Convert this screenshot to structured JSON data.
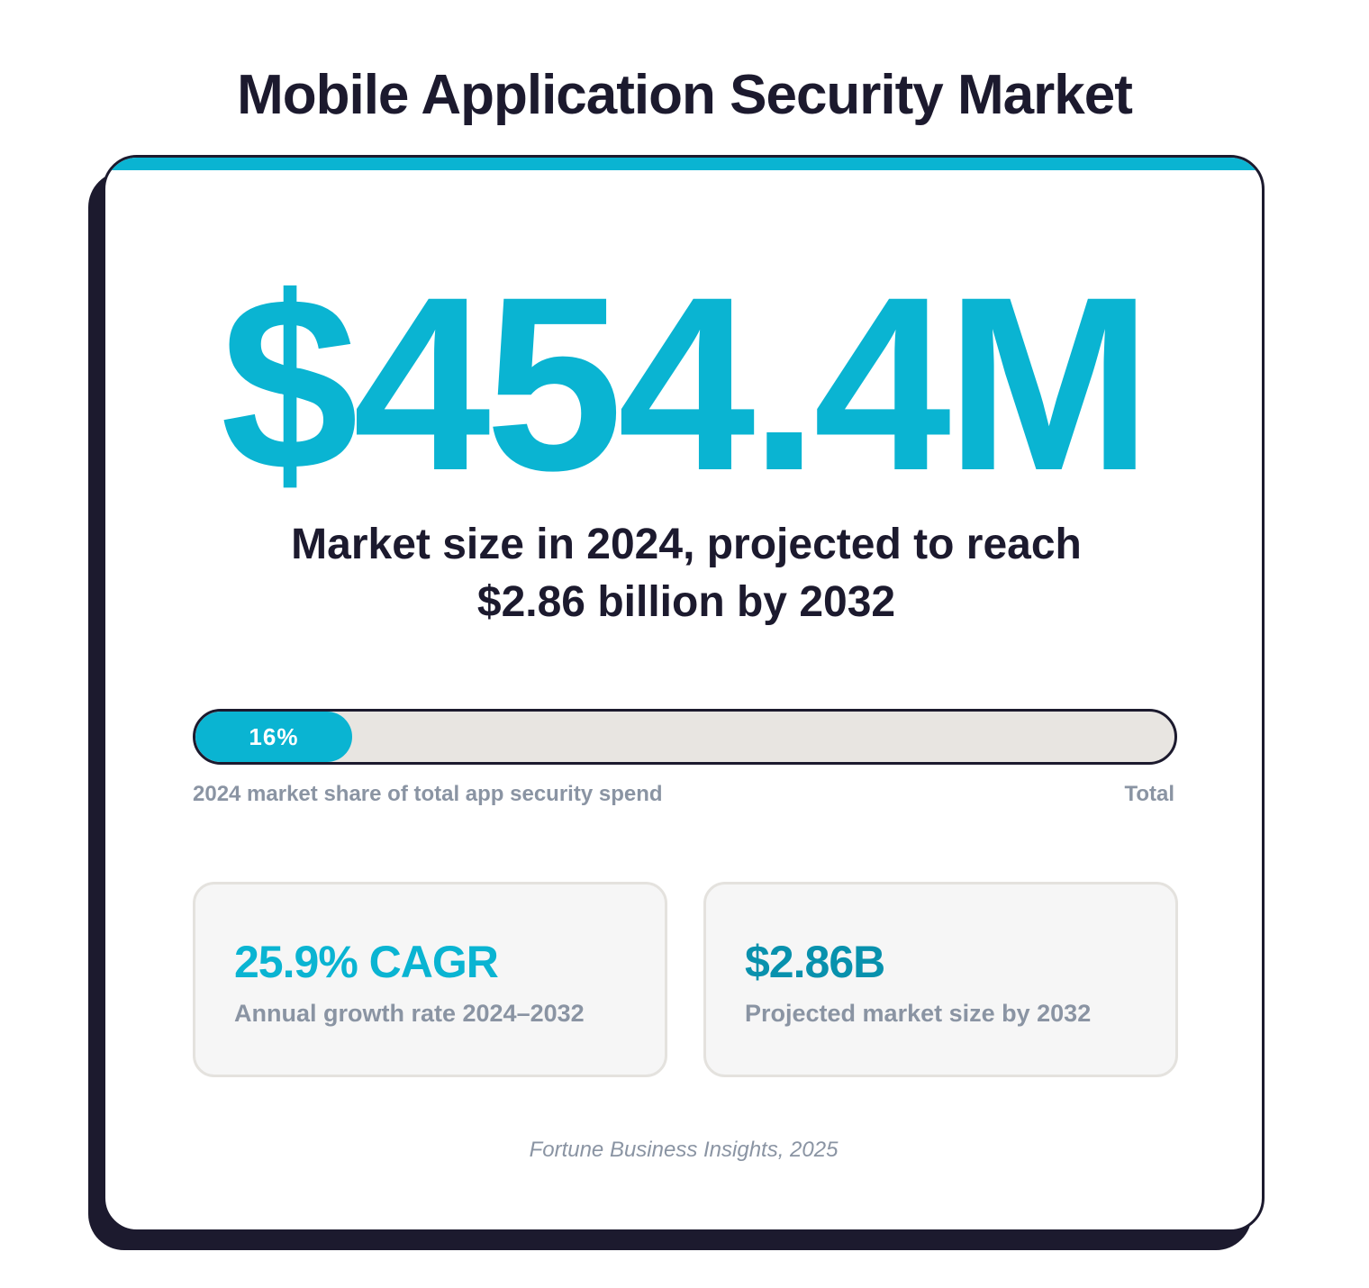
{
  "title": "Mobile Application Security Market",
  "headline_value": "$454.4M",
  "subtitle_line1": "Market size in 2024, projected to reach",
  "subtitle_line2": "$2.86 billion by 2032",
  "progress": {
    "percent": 16,
    "label": "16%",
    "caption_left": "2024 market share of total app security spend",
    "caption_right": "Total"
  },
  "stats": [
    {
      "value": "25.9% CAGR",
      "label": "Annual growth rate 2024–2032"
    },
    {
      "value": "$2.86B",
      "label": "Projected market size by 2032"
    }
  ],
  "source": "Fortune Business Insights, 2025",
  "colors": {
    "accent": "#0ab4d2",
    "accent_dark": "#0891ad",
    "ink": "#1c1a2e",
    "muted": "#8a94a3",
    "track": "#e8e5e1"
  }
}
